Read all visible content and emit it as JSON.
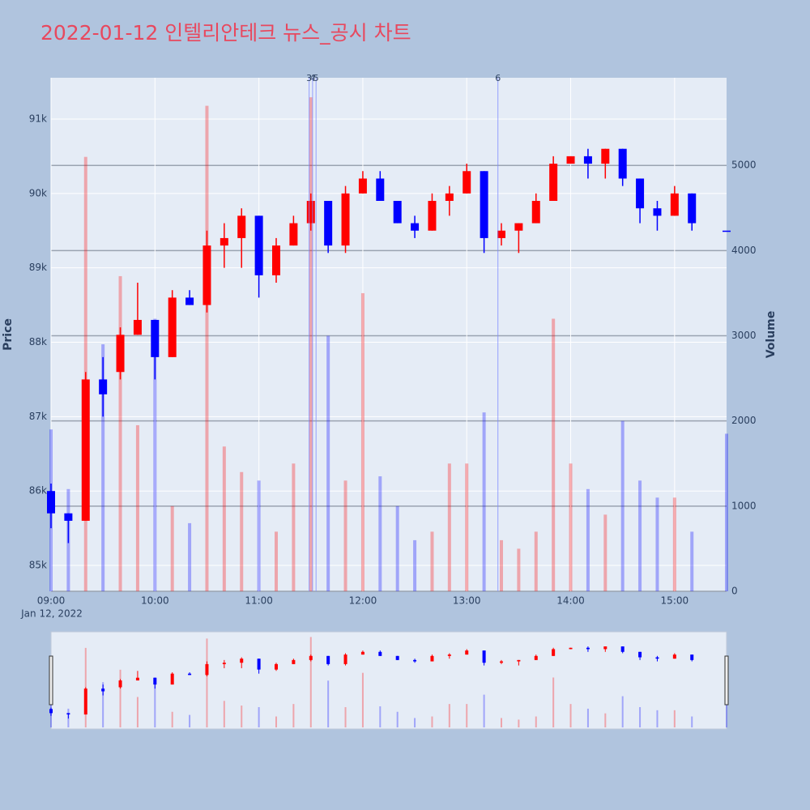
{
  "chart_data": {
    "type": "candlestick",
    "title": "2022-01-12 인텔리안테크 뉴스_공시 차트",
    "x_date_label": "Jan 12, 2022",
    "ylabel": "Price",
    "y2label": "Volume",
    "x": [
      "09:00",
      "09:10",
      "09:20",
      "09:30",
      "09:40",
      "09:50",
      "10:00",
      "10:10",
      "10:20",
      "10:30",
      "10:40",
      "10:50",
      "11:00",
      "11:10",
      "11:20",
      "11:30",
      "11:40",
      "11:50",
      "12:00",
      "12:10",
      "12:20",
      "12:30",
      "12:40",
      "12:50",
      "13:00",
      "13:10",
      "13:20",
      "13:30",
      "13:40",
      "13:50",
      "14:00",
      "14:10",
      "14:20",
      "14:30",
      "14:40",
      "14:50",
      "15:00",
      "15:10",
      "15:30"
    ],
    "open": [
      86000,
      85700,
      85600,
      87500,
      87600,
      88100,
      88300,
      87800,
      88600,
      88500,
      89300,
      89400,
      89700,
      88900,
      89300,
      89600,
      89900,
      89300,
      90000,
      90200,
      89900,
      89600,
      89500,
      89900,
      90000,
      90300,
      89400,
      89500,
      89600,
      89900,
      90400,
      90500,
      90400,
      90600,
      90200,
      89800,
      89700,
      90000,
      89500
    ],
    "high": [
      86100,
      85700,
      87600,
      87800,
      88200,
      88800,
      88300,
      88700,
      88700,
      89500,
      89600,
      89800,
      89700,
      89400,
      89700,
      90000,
      89900,
      90100,
      90300,
      90300,
      89900,
      89700,
      90000,
      90100,
      90400,
      90300,
      89600,
      89600,
      90000,
      90500,
      90500,
      90600,
      90600,
      90600,
      90200,
      89900,
      90100,
      90000,
      89500
    ],
    "low": [
      85500,
      85300,
      85600,
      87000,
      87500,
      88100,
      87500,
      87800,
      88500,
      88400,
      89000,
      89000,
      88600,
      88800,
      89300,
      89500,
      89200,
      89200,
      90000,
      89900,
      89600,
      89400,
      89500,
      89700,
      90000,
      89200,
      89300,
      89200,
      89600,
      89900,
      90400,
      90200,
      90200,
      90100,
      89600,
      89500,
      89700,
      89500,
      89500
    ],
    "close": [
      85700,
      85600,
      87500,
      87300,
      88100,
      88300,
      87800,
      88600,
      88500,
      89300,
      89400,
      89700,
      88900,
      89300,
      89600,
      89900,
      89300,
      90000,
      90200,
      89900,
      89600,
      89500,
      89900,
      90000,
      90300,
      89400,
      89500,
      89600,
      89900,
      90400,
      90500,
      90400,
      90600,
      90200,
      89800,
      89700,
      90000,
      89600,
      89500
    ],
    "volume": [
      1900,
      1200,
      5100,
      2900,
      3700,
      1950,
      3200,
      1000,
      800,
      5700,
      1700,
      1400,
      1300,
      700,
      1500,
      5800,
      3000,
      1300,
      3500,
      1350,
      1000,
      600,
      700,
      1500,
      1500,
      2100,
      600,
      500,
      700,
      3200,
      1500,
      1200,
      900,
      2000,
      1300,
      1100,
      1100,
      700,
      1850
    ],
    "increasing_color": "#ff0000",
    "decreasing_color": "#0000ff",
    "xlim": [
      "09:00",
      "15:30"
    ],
    "xticks": [
      "09:00",
      "10:00",
      "11:00",
      "12:00",
      "13:00",
      "14:00",
      "15:00"
    ],
    "ylim": [
      84652,
      91555
    ],
    "yticks": [
      {
        "value": 85000,
        "label": "85k"
      },
      {
        "value": 86000,
        "label": "86k"
      },
      {
        "value": 87000,
        "label": "87k"
      },
      {
        "value": 88000,
        "label": "88k"
      },
      {
        "value": 89000,
        "label": "89k"
      },
      {
        "value": 90000,
        "label": "90k"
      },
      {
        "value": 91000,
        "label": "91k"
      }
    ],
    "y2lim": [
      0,
      6029
    ],
    "y2ticks": [
      0,
      1000,
      2000,
      3000,
      4000,
      5000
    ],
    "markers": [
      {
        "label": "3",
        "x": "11:29"
      },
      {
        "label": "4",
        "x": "11:31"
      },
      {
        "label": "5",
        "x": "11:33"
      },
      {
        "label": "6",
        "x": "13:18"
      }
    ],
    "rangeslider": true
  }
}
